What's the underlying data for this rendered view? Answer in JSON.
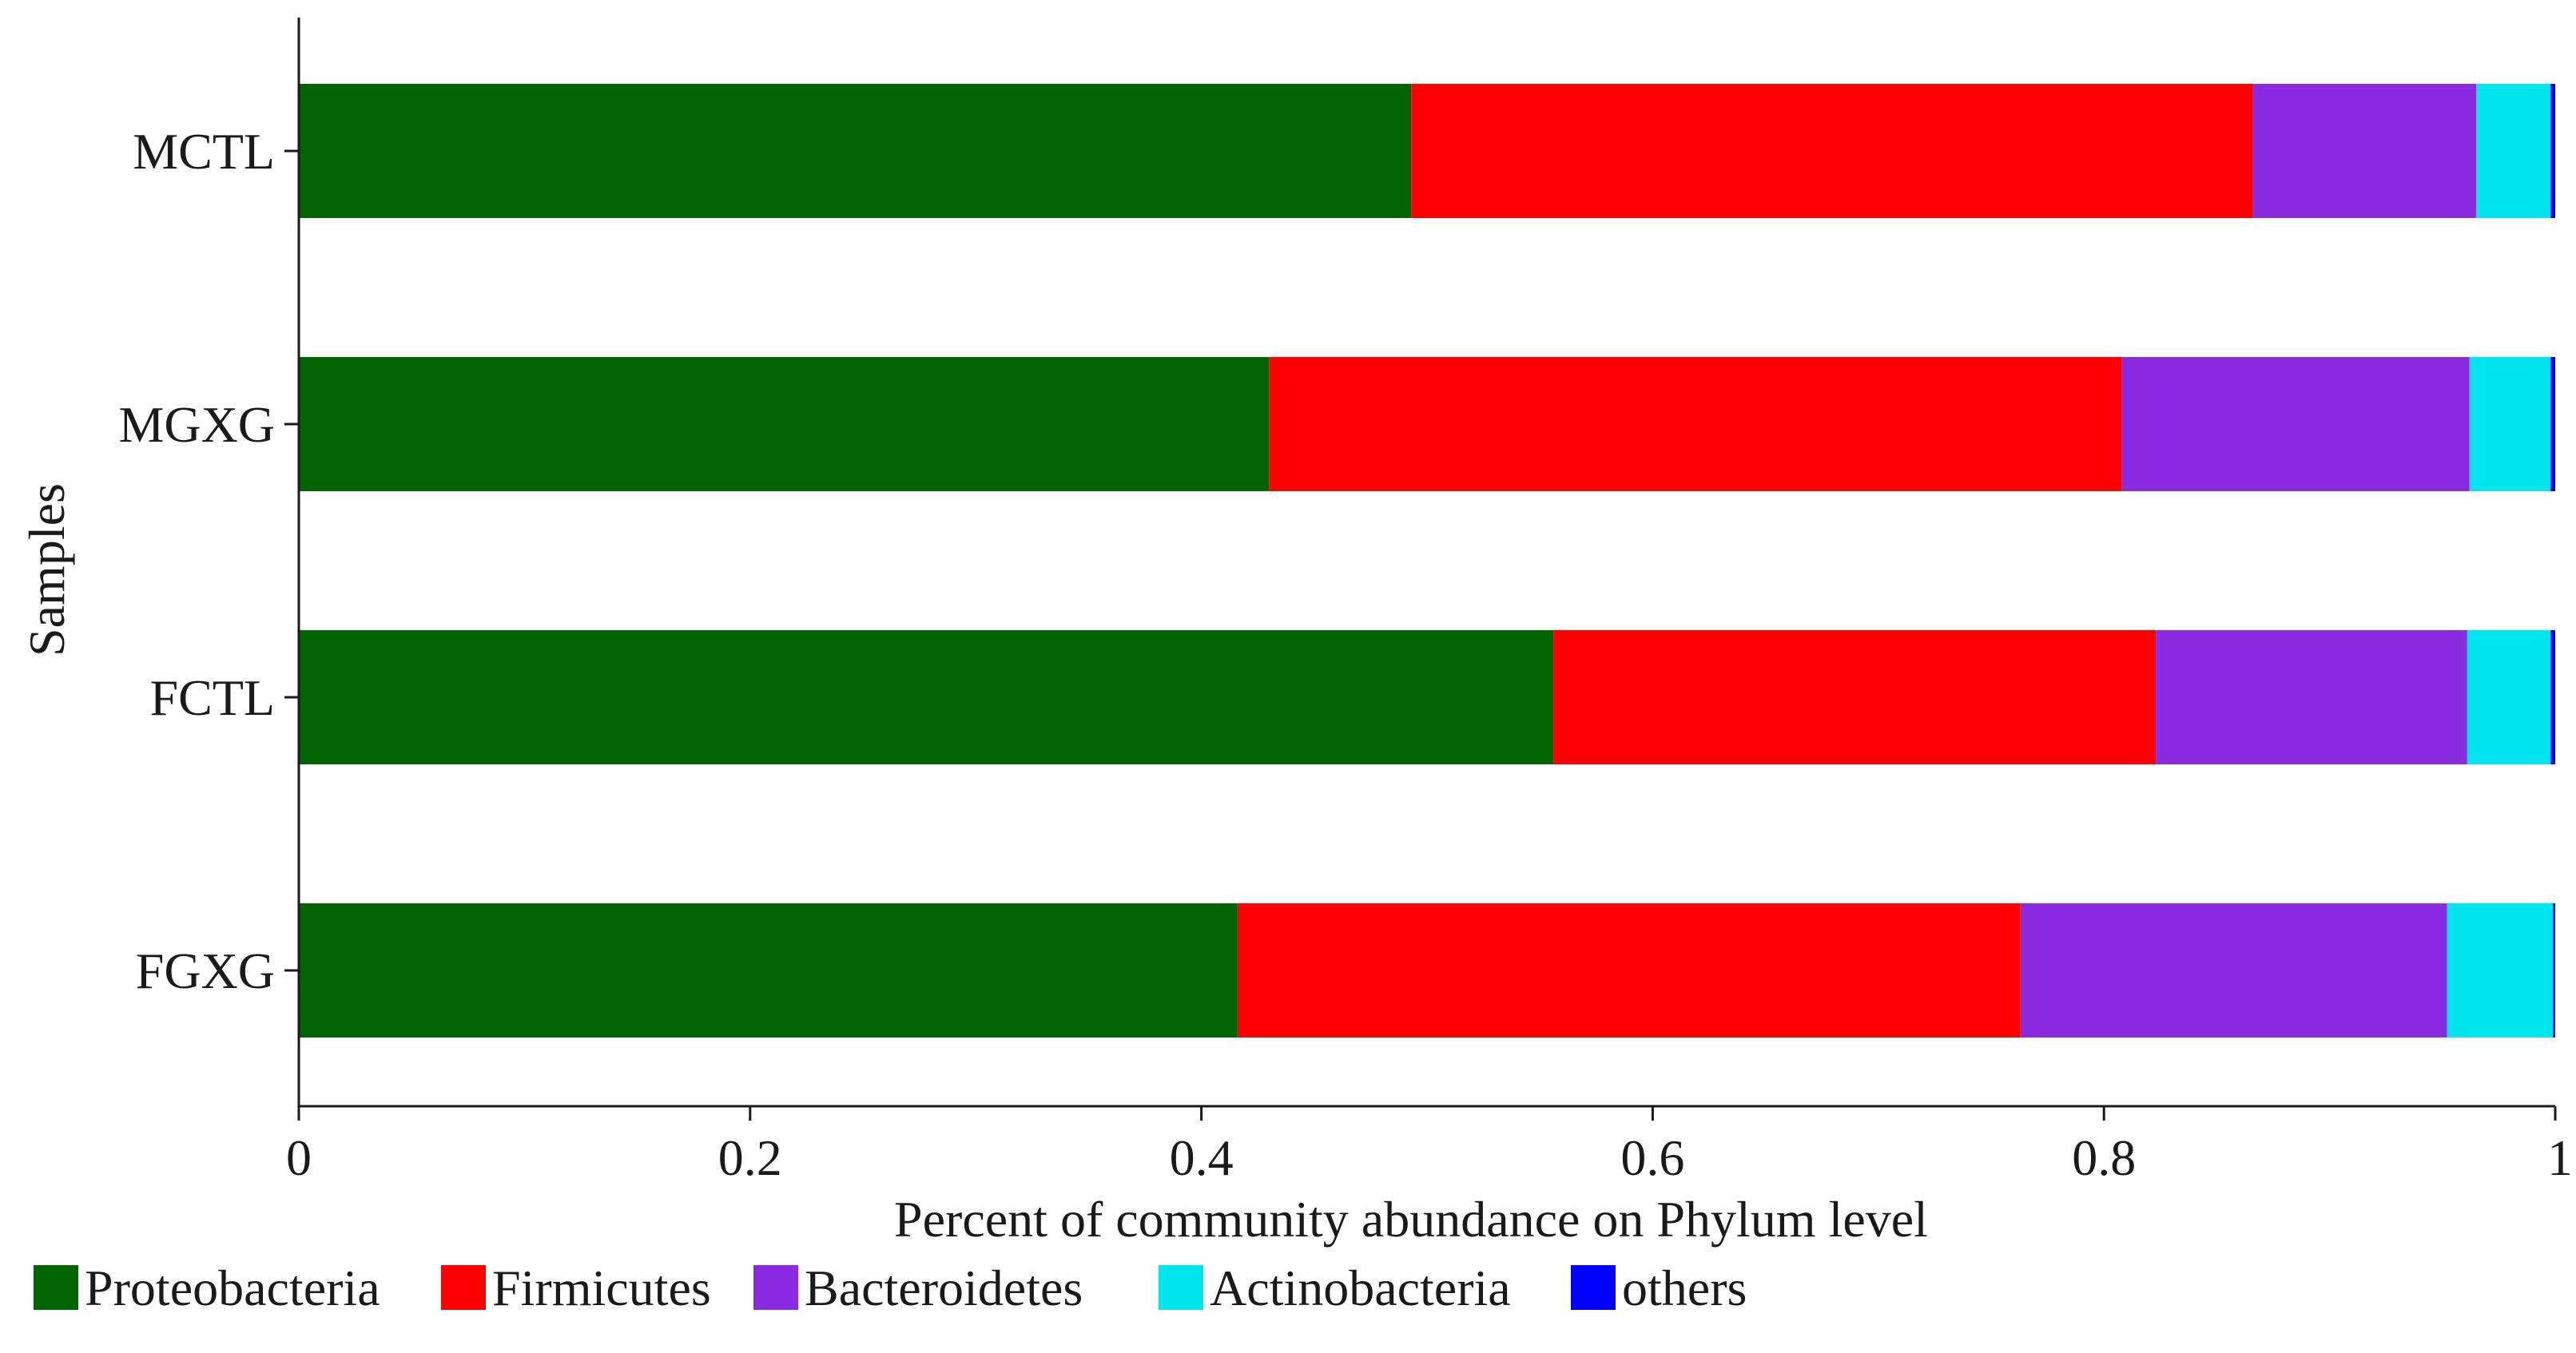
{
  "chart_data": {
    "type": "bar",
    "orientation": "horizontal",
    "stacked": true,
    "xlabel": "Percent of community abundance on Phylum level",
    "ylabel": "Samples",
    "xlim": [
      0,
      1
    ],
    "xticks": [
      0,
      0.2,
      0.4,
      0.6,
      0.8,
      1
    ],
    "xtick_labels": [
      "0",
      "0.2",
      "0.4",
      "0.6",
      "0.8",
      "1"
    ],
    "categories": [
      "MCTL",
      "MGXG",
      "FCTL",
      "FGXG"
    ],
    "series": [
      {
        "name": "Proteobacteria",
        "color": "#006400",
        "values": [
          0.493,
          0.43,
          0.556,
          0.416
        ]
      },
      {
        "name": "Firmicutes",
        "color": "#ff0000",
        "values": [
          0.373,
          0.378,
          0.267,
          0.347
        ]
      },
      {
        "name": "Bacteroidetes",
        "color": "#8a2be2",
        "values": [
          0.099,
          0.154,
          0.138,
          0.189
        ]
      },
      {
        "name": "Actinobacteria",
        "color": "#00e5ee",
        "values": [
          0.033,
          0.036,
          0.037,
          0.047
        ]
      },
      {
        "name": "others",
        "color": "#0000ff",
        "values": [
          0.002,
          0.002,
          0.002,
          0.001
        ]
      }
    ],
    "grid": false,
    "legend_position": "bottom"
  }
}
